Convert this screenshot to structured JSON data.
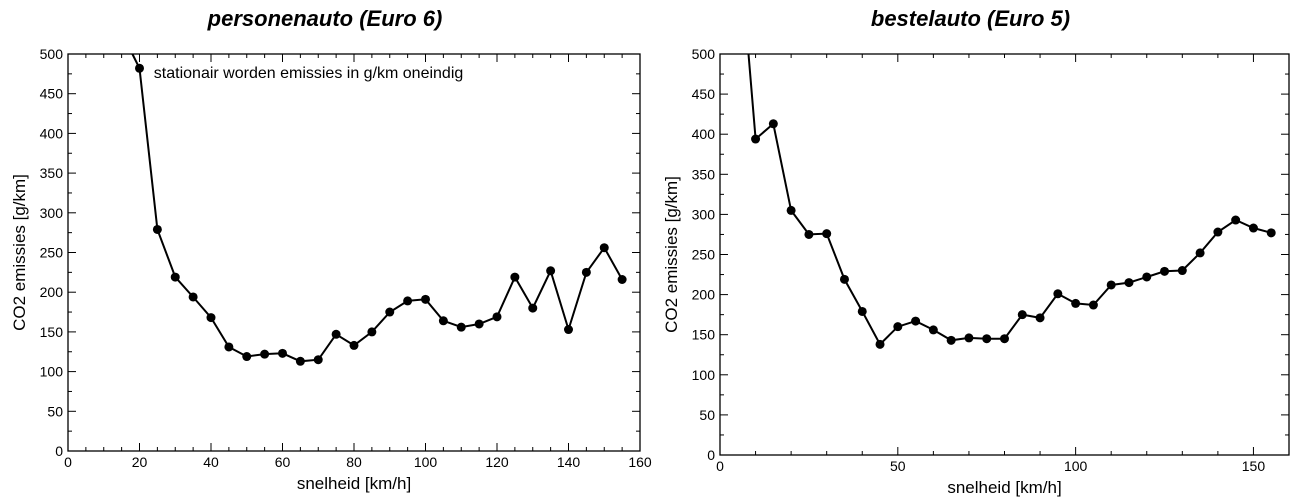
{
  "chart_data": [
    {
      "type": "line",
      "title": "personenauto (Euro 6)",
      "xlabel": "snelheid [km/h]",
      "ylabel": "CO2 emissies [g/km]",
      "xlim": [
        0,
        160
      ],
      "ylim": [
        0,
        500
      ],
      "xticks": [
        0,
        20,
        40,
        60,
        80,
        100,
        120,
        140,
        160
      ],
      "yticks": [
        0,
        50,
        100,
        150,
        200,
        250,
        300,
        350,
        400,
        450,
        500
      ],
      "annotation": "stationair worden emissies in g/km oneindig",
      "curve_lead": [
        [
          18,
          500
        ],
        [
          20,
          482
        ]
      ],
      "x": [
        20,
        25,
        30,
        35,
        40,
        45,
        50,
        55,
        60,
        65,
        70,
        75,
        80,
        85,
        90,
        95,
        100,
        105,
        110,
        115,
        120,
        125,
        130,
        135,
        140,
        145,
        150,
        155
      ],
      "y": [
        482,
        279,
        219,
        194,
        168,
        131,
        119,
        122,
        123,
        113,
        115,
        147,
        133,
        150,
        175,
        189,
        191,
        164,
        156,
        160,
        169,
        219,
        180,
        227,
        153,
        225,
        256,
        216
      ],
      "grid": false,
      "color": "#000000"
    },
    {
      "type": "line",
      "title": "bestelauto (Euro 5)",
      "xlabel": "snelheid [km/h]",
      "ylabel": "CO2 emissies [g/km]",
      "xlim": [
        0,
        160
      ],
      "ylim": [
        0,
        500
      ],
      "xticks": [
        0,
        50,
        100,
        150
      ],
      "yticks": [
        0,
        50,
        100,
        150,
        200,
        250,
        300,
        350,
        400,
        450,
        500
      ],
      "curve_lead": [
        [
          8,
          500
        ],
        [
          10,
          394
        ]
      ],
      "x": [
        10,
        15,
        20,
        25,
        30,
        35,
        40,
        45,
        50,
        55,
        60,
        65,
        70,
        75,
        80,
        85,
        90,
        95,
        100,
        105,
        110,
        115,
        120,
        125,
        130,
        135,
        140,
        145,
        150,
        155
      ],
      "y": [
        394,
        413,
        305,
        275,
        276,
        219,
        179,
        138,
        160,
        167,
        156,
        143,
        146,
        145,
        145,
        175,
        171,
        201,
        189,
        187,
        212,
        215,
        222,
        229,
        230,
        252,
        278,
        293,
        283,
        277
      ],
      "grid": false,
      "color": "#000000"
    }
  ]
}
